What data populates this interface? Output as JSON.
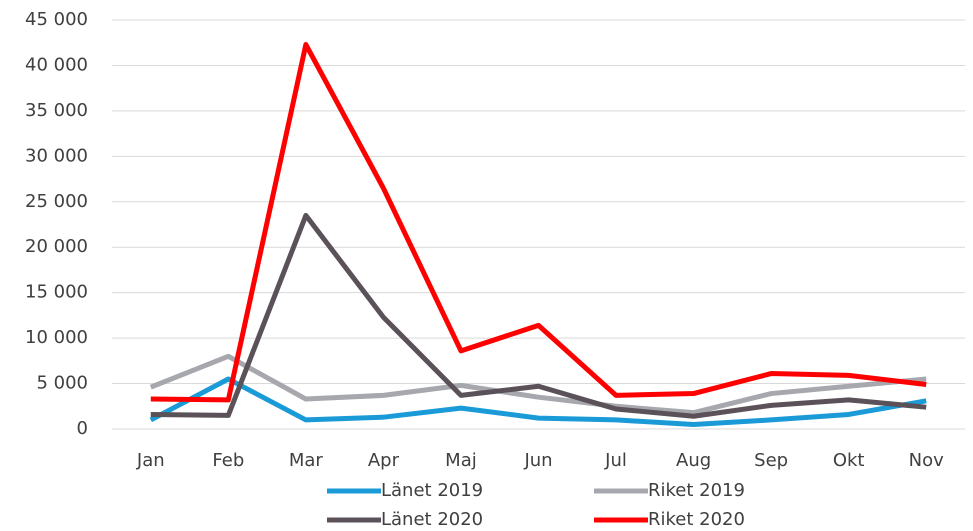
{
  "chart_data": {
    "type": "line",
    "categories": [
      "Jan",
      "Feb",
      "Mar",
      "Apr",
      "Maj",
      "Jun",
      "Jul",
      "Aug",
      "Sep",
      "Okt",
      "Nov"
    ],
    "series": [
      {
        "name": "Länet 2019",
        "color": "#1a9bd7",
        "values": [
          1000,
          5500,
          1000,
          1300,
          2300,
          1200,
          1000,
          500,
          1000,
          1600,
          3100
        ]
      },
      {
        "name": "Riket 2019",
        "color": "#a7a8ae",
        "values": [
          4600,
          8000,
          3300,
          3700,
          4800,
          3500,
          2500,
          1800,
          3900,
          4700,
          5500
        ]
      },
      {
        "name": "Länet 2020",
        "color": "#5b5158",
        "values": [
          1600,
          1500,
          23500,
          12300,
          3700,
          4700,
          2200,
          1400,
          2600,
          3200,
          2400
        ]
      },
      {
        "name": "Riket 2020",
        "color": "#ff0000",
        "values": [
          3300,
          3200,
          42300,
          26500,
          8600,
          11400,
          3700,
          3900,
          6100,
          5900,
          4900
        ]
      }
    ],
    "ylim": [
      0,
      45000
    ],
    "yticks": [
      0,
      {
        "value": 5000,
        "label": "5 000"
      },
      {
        "value": 10000,
        "label": "10 000"
      },
      {
        "value": 15000,
        "label": "15 000"
      },
      {
        "value": 20000,
        "label": "20 000"
      },
      {
        "value": 25000,
        "label": "25 000"
      },
      {
        "value": 30000,
        "label": "30 000"
      },
      {
        "value": 35000,
        "label": "35 000"
      },
      {
        "value": 40000,
        "label": "40 000"
      },
      {
        "value": 45000,
        "label": "45 000"
      }
    ],
    "grid": true,
    "legend": "bottom"
  }
}
